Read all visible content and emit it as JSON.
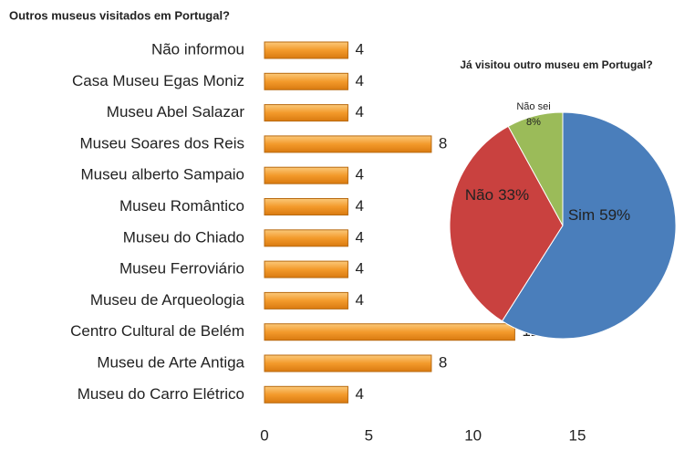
{
  "chart_data": [
    {
      "type": "bar",
      "orientation": "horizontal",
      "title": "Outros museus visitados em Portugal?",
      "categories": [
        "Não informou",
        "Casa Museu Egas Moniz",
        "Museu Abel Salazar",
        "Museu Soares dos Reis",
        "Museu alberto Sampaio",
        "Museu Romântico",
        "Museu do Chiado",
        "Museu Ferroviário",
        "Museu de Arqueologia",
        "Centro Cultural de Belém",
        "Museu de Arte Antiga",
        "Museu do Carro Elétrico"
      ],
      "values": [
        4,
        4,
        4,
        8,
        4,
        4,
        4,
        4,
        4,
        12,
        8,
        4
      ],
      "color": "#f39a2b",
      "xlim": [
        0,
        15
      ],
      "xticks": [
        0,
        5,
        10,
        15
      ]
    },
    {
      "type": "pie",
      "title": "Já visitou outro museu em Portugal?",
      "categories": [
        "Sim",
        "Não",
        "Não sei"
      ],
      "values": [
        59,
        33,
        8
      ],
      "value_labels": [
        "59%",
        "33%",
        "8%"
      ],
      "colors": [
        "#4a7ebb",
        "#c9413f",
        "#9bbb59"
      ]
    }
  ]
}
